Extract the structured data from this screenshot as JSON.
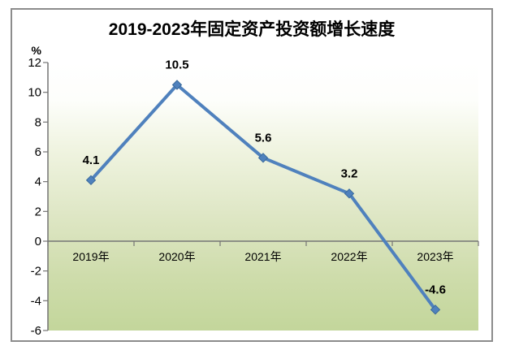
{
  "chart_data": {
    "type": "line",
    "title": "2019-2023年固定资产投资额增长速度",
    "unit_label": "%",
    "categories": [
      "2019年",
      "2020年",
      "2021年",
      "2022年",
      "2023年"
    ],
    "values": [
      4.1,
      10.5,
      5.6,
      3.2,
      -4.6
    ],
    "data_labels": [
      "4.1",
      "10.5",
      "5.6",
      "3.2",
      "-4.6"
    ],
    "yticks": [
      "12",
      "10",
      "8",
      "6",
      "4",
      "2",
      "0",
      "-2",
      "-4",
      "-6"
    ],
    "ylim": [
      -6,
      12
    ],
    "ytick_step": 2,
    "xlabel": "",
    "ylabel": "%",
    "grid": "off",
    "legend": "none",
    "marker": "diamond",
    "colors": {
      "line": "#4F81BD",
      "marker_border": "#3A6A9B",
      "axis": "#747474",
      "text": "#000000",
      "figure_border": "#8C8C8C",
      "plot_gradient_top": "#FFFFFF",
      "plot_gradient_bottom": "#C3D69B"
    }
  }
}
